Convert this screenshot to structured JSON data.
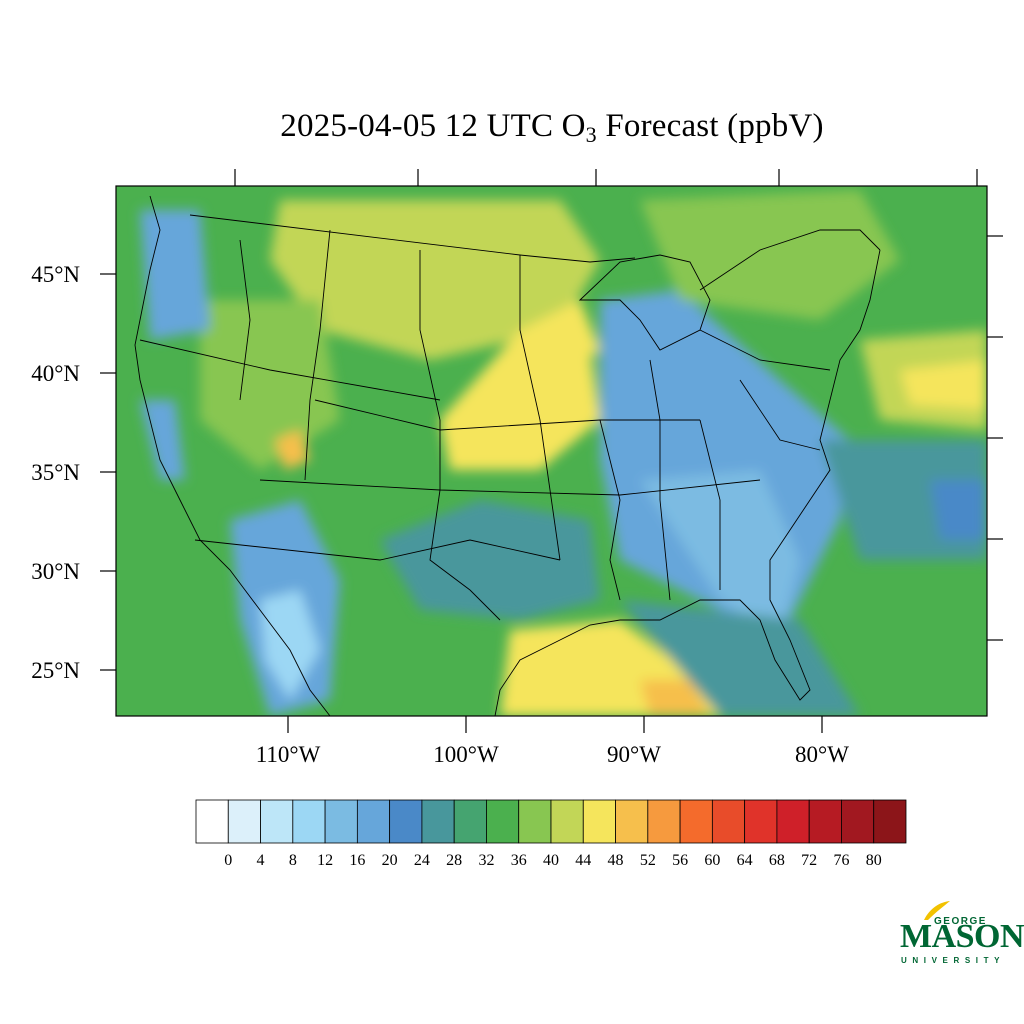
{
  "title": {
    "prefix": "2025-04-05 12 UTC O",
    "subscript": "3",
    "suffix": " Forecast (ppbV)"
  },
  "map": {
    "lon_range": [
      -119,
      -70
    ],
    "lat_range": [
      22.5,
      49.5
    ],
    "lat_labels": [
      "45°N",
      "40°N",
      "35°N",
      "30°N",
      "25°N"
    ],
    "lon_labels": [
      "110°W",
      "100°W",
      "90°W",
      "80°W"
    ],
    "regions": [
      {
        "name": "pacific-ocean",
        "value": 36
      },
      {
        "name": "western-us",
        "value": 36
      },
      {
        "name": "great-plains",
        "value": 44
      },
      {
        "name": "kansas-belt",
        "value": 48
      },
      {
        "name": "southeast-us",
        "value": 20
      },
      {
        "name": "gulf-of-mexico-west",
        "value": 48
      },
      {
        "name": "gulf-of-mexico-east",
        "value": 24
      },
      {
        "name": "atlantic-ocean",
        "value": 32
      },
      {
        "name": "northeast-atlantic",
        "value": 44
      }
    ]
  },
  "colorbar": {
    "levels": [
      "0",
      "4",
      "8",
      "12",
      "16",
      "20",
      "24",
      "28",
      "32",
      "36",
      "40",
      "44",
      "48",
      "52",
      "56",
      "60",
      "64",
      "68",
      "72",
      "76",
      "80"
    ],
    "colors": [
      "#ffffff",
      "#dcf0fa",
      "#bde6f8",
      "#9cd7f4",
      "#7bbbe2",
      "#66a6da",
      "#4a89c8",
      "#48979c",
      "#45a470",
      "#4bb04e",
      "#88c651",
      "#c2d657",
      "#f5e55c",
      "#f6bf4c",
      "#f69a3e",
      "#f46b2c",
      "#e84c2a",
      "#e0332a",
      "#cf2029",
      "#b61b23",
      "#a11820",
      "#8c1519"
    ]
  },
  "logo": {
    "top": "GEORGE",
    "main": "MASON",
    "bottom": "UNIVERSITY"
  }
}
